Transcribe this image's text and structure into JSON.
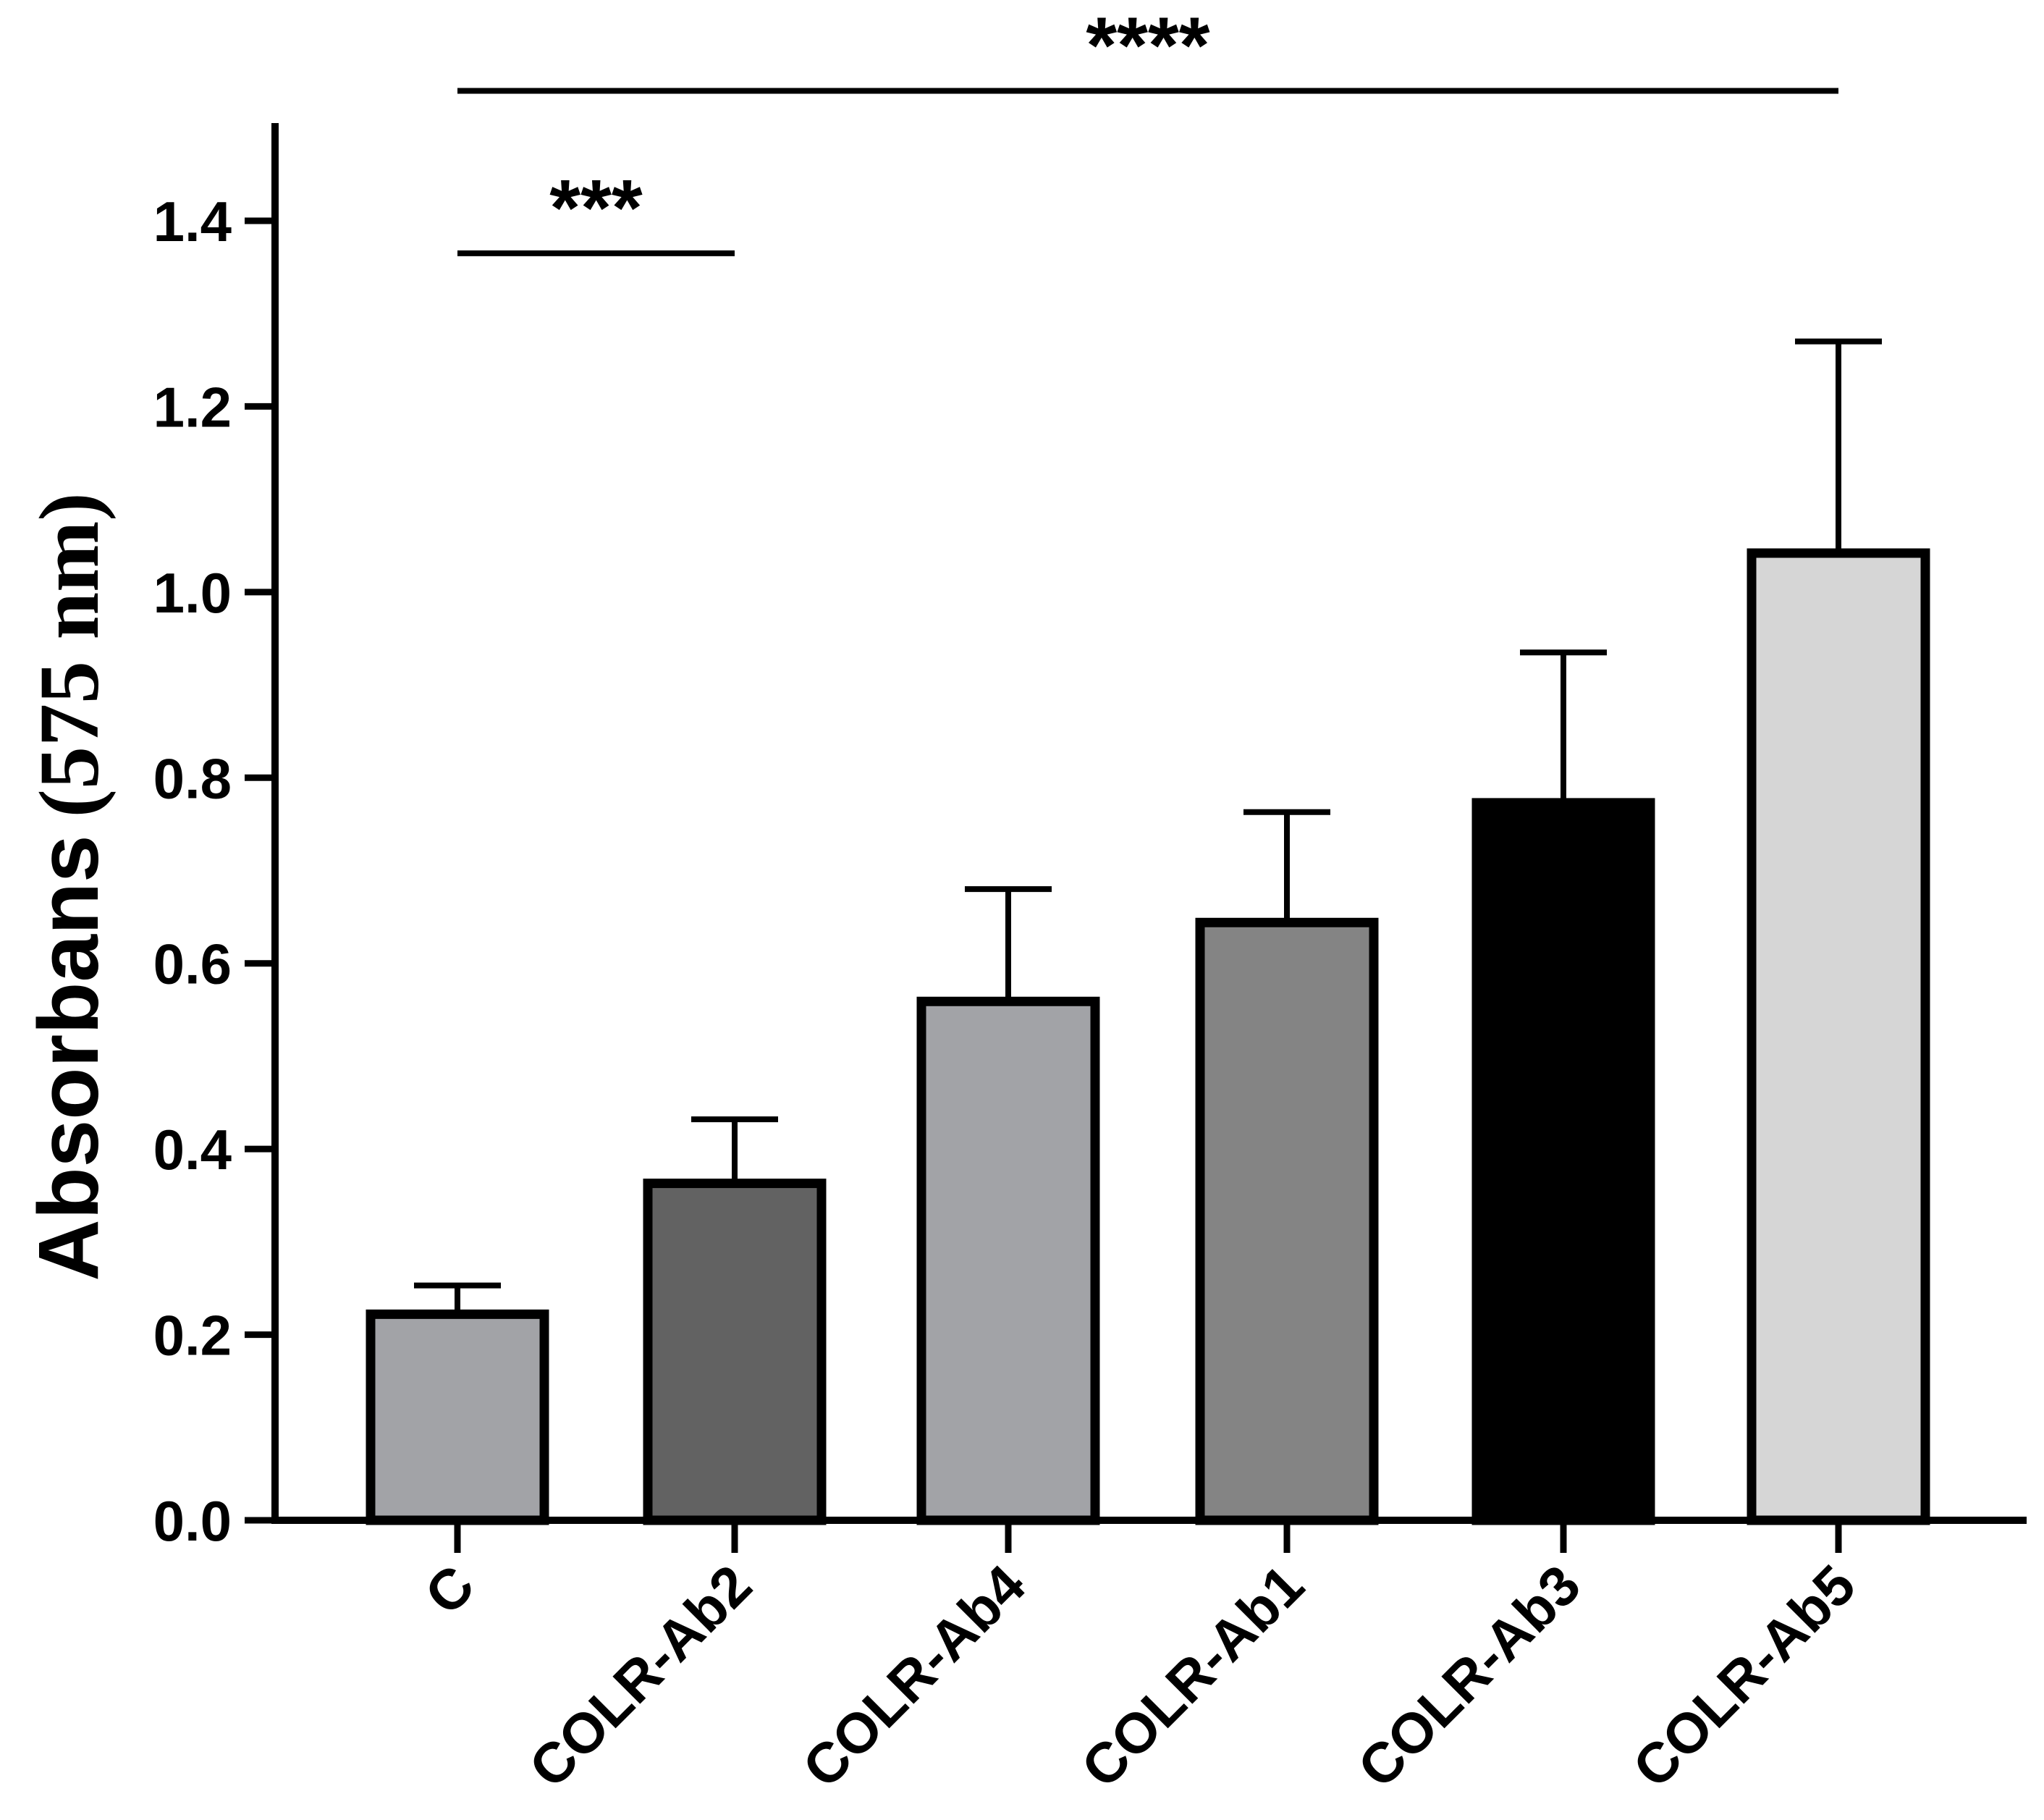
{
  "chart_data": {
    "type": "bar",
    "title": "",
    "xlabel": "",
    "ylabel": "Absorbans",
    "ylabel_unit": "(575 nm)",
    "ylim": [
      0,
      1.5
    ],
    "yticks": [
      0.0,
      0.2,
      0.4,
      0.6,
      0.8,
      1.0,
      1.2,
      1.4
    ],
    "ytick_labels": [
      "0.0",
      "0.2",
      "0.4",
      "0.6",
      "0.8",
      "1.0",
      "1.2",
      "1.4"
    ],
    "categories": [
      "C",
      "COLR-Ab2",
      "COLR-Ab4",
      "COLR-Ab1",
      "COLR-Ab3",
      "COLR-Ab5"
    ],
    "values": [
      0.222,
      0.363,
      0.559,
      0.644,
      0.773,
      1.042
    ],
    "errors": [
      0.031,
      0.069,
      0.121,
      0.119,
      0.162,
      0.228
    ],
    "bar_colors": [
      "#a2a3a7",
      "#626262",
      "#a2a3a7",
      "#848484",
      "#000000",
      "#d6d6d6"
    ],
    "significance": [
      {
        "label": "***",
        "from": "C",
        "to": "COLR-Ab2",
        "level": 1.365
      },
      {
        "label": "****",
        "from": "C",
        "to": "COLR-Ab5",
        "level": 1.54
      }
    ],
    "grid": false,
    "legend": "none"
  }
}
